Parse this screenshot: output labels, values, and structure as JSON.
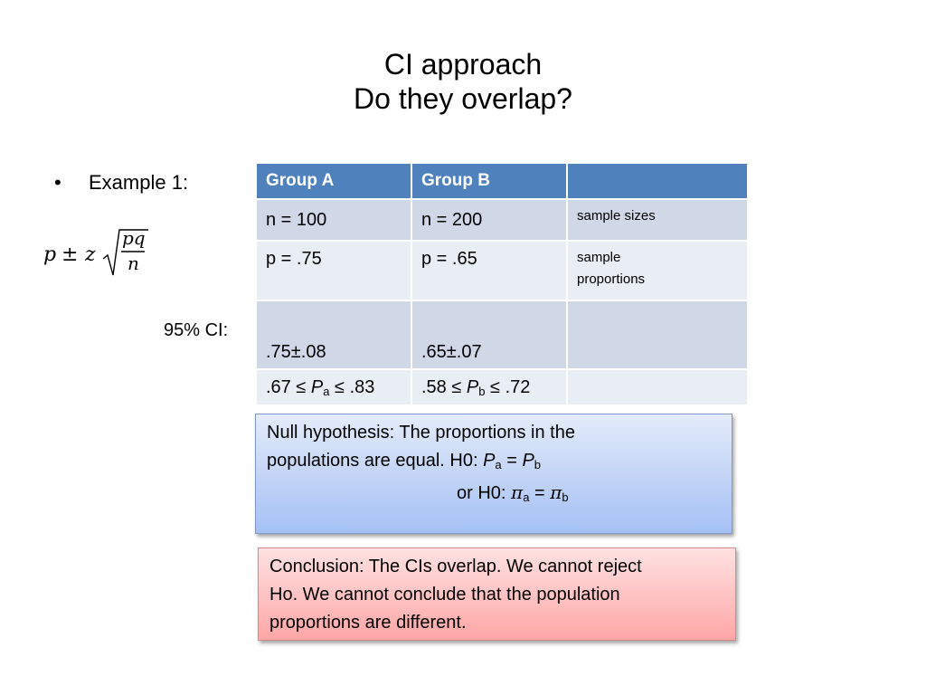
{
  "slide": {
    "title_line1": "CI approach",
    "title_line2": "Do they overlap?"
  },
  "bullet": {
    "marker": "•",
    "text": "Example 1:"
  },
  "formula": {
    "p": "p",
    "pm": "±",
    "z": "z",
    "numerator": "pq",
    "denominator": "n"
  },
  "ci_label": "95% CI:",
  "table": {
    "headers": [
      "Group A",
      "Group B",
      ""
    ],
    "rows": {
      "sizes": {
        "a": "n = 100",
        "b": "n = 200",
        "note": "sample sizes"
      },
      "props": {
        "a": "p = .75",
        "b": "p = .65",
        "note_line1": "sample",
        "note_line2": "proportions"
      },
      "ci": {
        "a": ".75±.08",
        "b": ".65±.07",
        "note": ""
      },
      "interval": {
        "a_left": ".67 ≤ ",
        "a_P": "P",
        "a_sub": "a",
        "a_right": " ≤ .83",
        "b_left": ".58 ≤ ",
        "b_P": "P",
        "b_sub": "b",
        "b_right": " ≤ .72"
      }
    }
  },
  "null_box": {
    "line1": "Null hypothesis:  The proportions in the",
    "line2_text": "populations are equal.  H0: ",
    "line2_P1": "P",
    "line2_sub1": "a",
    "line2_eq": " = ",
    "line2_P2": "P",
    "line2_sub2": "b",
    "line3_text": "or  H0: ",
    "line3_pi1": "π",
    "line3_sub1": "a",
    "line3_eq": " = ",
    "line3_pi2": "π",
    "line3_sub2": "b"
  },
  "conclusion_box": {
    "line1": "Conclusion:  The CIs overlap.  We cannot reject",
    "line2": "Ho.  We cannot conclude that the population",
    "line3": "proportions are different."
  }
}
